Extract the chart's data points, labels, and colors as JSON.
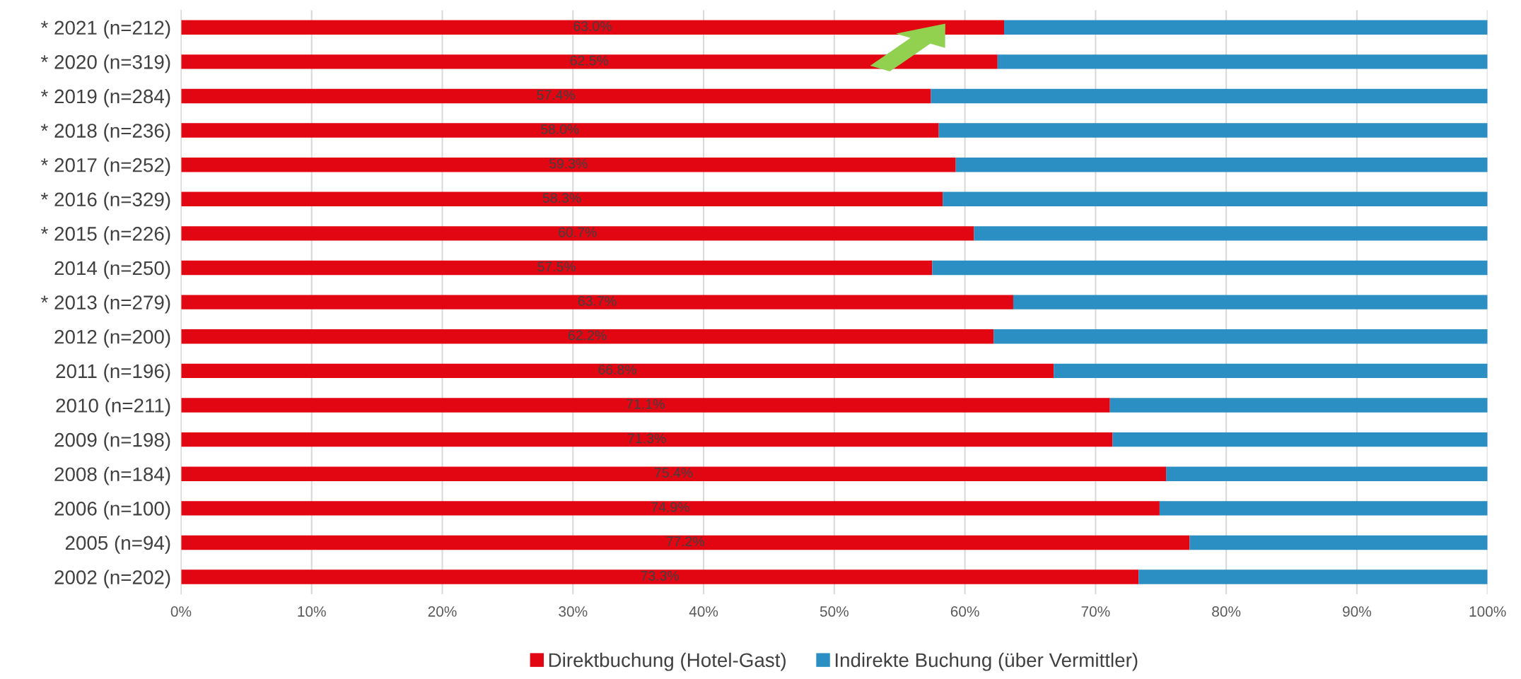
{
  "chart_data": {
    "type": "bar",
    "orientation": "horizontal",
    "stacked": true,
    "categories": [
      "* 2021 (n=212)",
      "* 2020 (n=319)",
      "* 2019 (n=284)",
      "* 2018 (n=236)",
      "* 2017 (n=252)",
      "* 2016 (n=329)",
      "* 2015 (n=226)",
      "2014 (n=250)",
      "* 2013 (n=279)",
      "2012 (n=200)",
      "2011 (n=196)",
      "2010 (n=211)",
      "2009 (n=198)",
      "2008 (n=184)",
      "2006 (n=100)",
      "2005 (n=94)",
      "2002 (n=202)"
    ],
    "series": [
      {
        "name": "Direktbuchung (Hotel-Gast)",
        "color": "#e20613",
        "values": [
          63.0,
          62.5,
          57.4,
          58.0,
          59.3,
          58.3,
          60.7,
          57.5,
          63.7,
          62.2,
          66.8,
          71.1,
          71.3,
          75.4,
          74.9,
          77.2,
          73.3
        ],
        "value_labels": [
          "63.0%",
          "62.5%",
          "57.4%",
          "58.0%",
          "59.3%",
          "58.3%",
          "60.7%",
          "57.5%",
          "63.7%",
          "62.2%",
          "66.8%",
          "71.1%",
          "71.3%",
          "75.4%",
          "74.9%",
          "77.2%",
          "73.3%"
        ]
      },
      {
        "name": "Indirekte Buchung (über Vermittler)",
        "color": "#2b8fc3",
        "values": [
          37.0,
          37.5,
          42.6,
          42.0,
          40.7,
          41.7,
          39.3,
          42.5,
          36.3,
          37.8,
          33.2,
          28.9,
          28.7,
          24.6,
          25.1,
          22.8,
          26.7
        ]
      }
    ],
    "xlim": [
      0,
      100
    ],
    "xticks": [
      {
        "value": 0,
        "label": "0%"
      },
      {
        "value": 10,
        "label": "10%"
      },
      {
        "value": 20,
        "label": "20%"
      },
      {
        "value": 30,
        "label": "30%"
      },
      {
        "value": 40,
        "label": "40%"
      },
      {
        "value": 50,
        "label": "50%"
      },
      {
        "value": 60,
        "label": "60%"
      },
      {
        "value": 70,
        "label": "70%"
      },
      {
        "value": 80,
        "label": "80%"
      },
      {
        "value": 90,
        "label": "90%"
      },
      {
        "value": 100,
        "label": "100%"
      }
    ],
    "grid": "x",
    "legend": "bottom"
  }
}
